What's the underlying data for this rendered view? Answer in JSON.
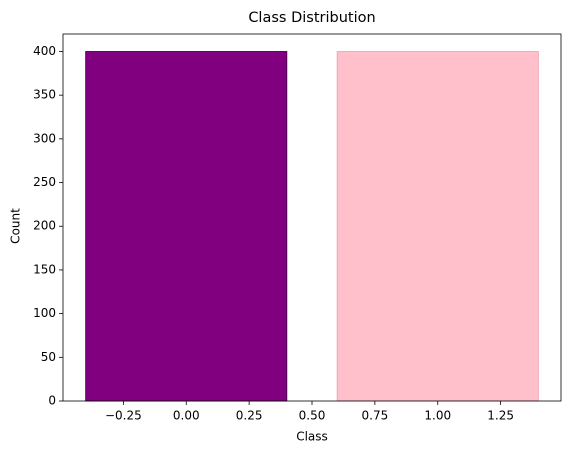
{
  "chart_data": {
    "type": "bar",
    "title": "Class Distribution",
    "xlabel": "Class",
    "ylabel": "Count",
    "x": [
      0,
      1
    ],
    "values": [
      400,
      400
    ],
    "bar_width": 0.8,
    "colors": [
      "#800080",
      "#ffc0cb"
    ],
    "edgecolors": [
      "#3a003a",
      "#f0a0b0"
    ],
    "xlim": [
      -0.49,
      1.49
    ],
    "xticks": [
      {
        "value": -0.25,
        "label": "−0.25"
      },
      {
        "value": 0,
        "label": "0.00"
      },
      {
        "value": 0.25,
        "label": "0.25"
      },
      {
        "value": 0.5,
        "label": "0.50"
      },
      {
        "value": 0.75,
        "label": "0.75"
      },
      {
        "value": 1,
        "label": "1.00"
      },
      {
        "value": 1.25,
        "label": "1.25"
      }
    ],
    "ylim": [
      0,
      420
    ],
    "yticks": [
      0,
      50,
      100,
      150,
      200,
      250,
      300,
      350,
      400
    ],
    "grid": false
  }
}
